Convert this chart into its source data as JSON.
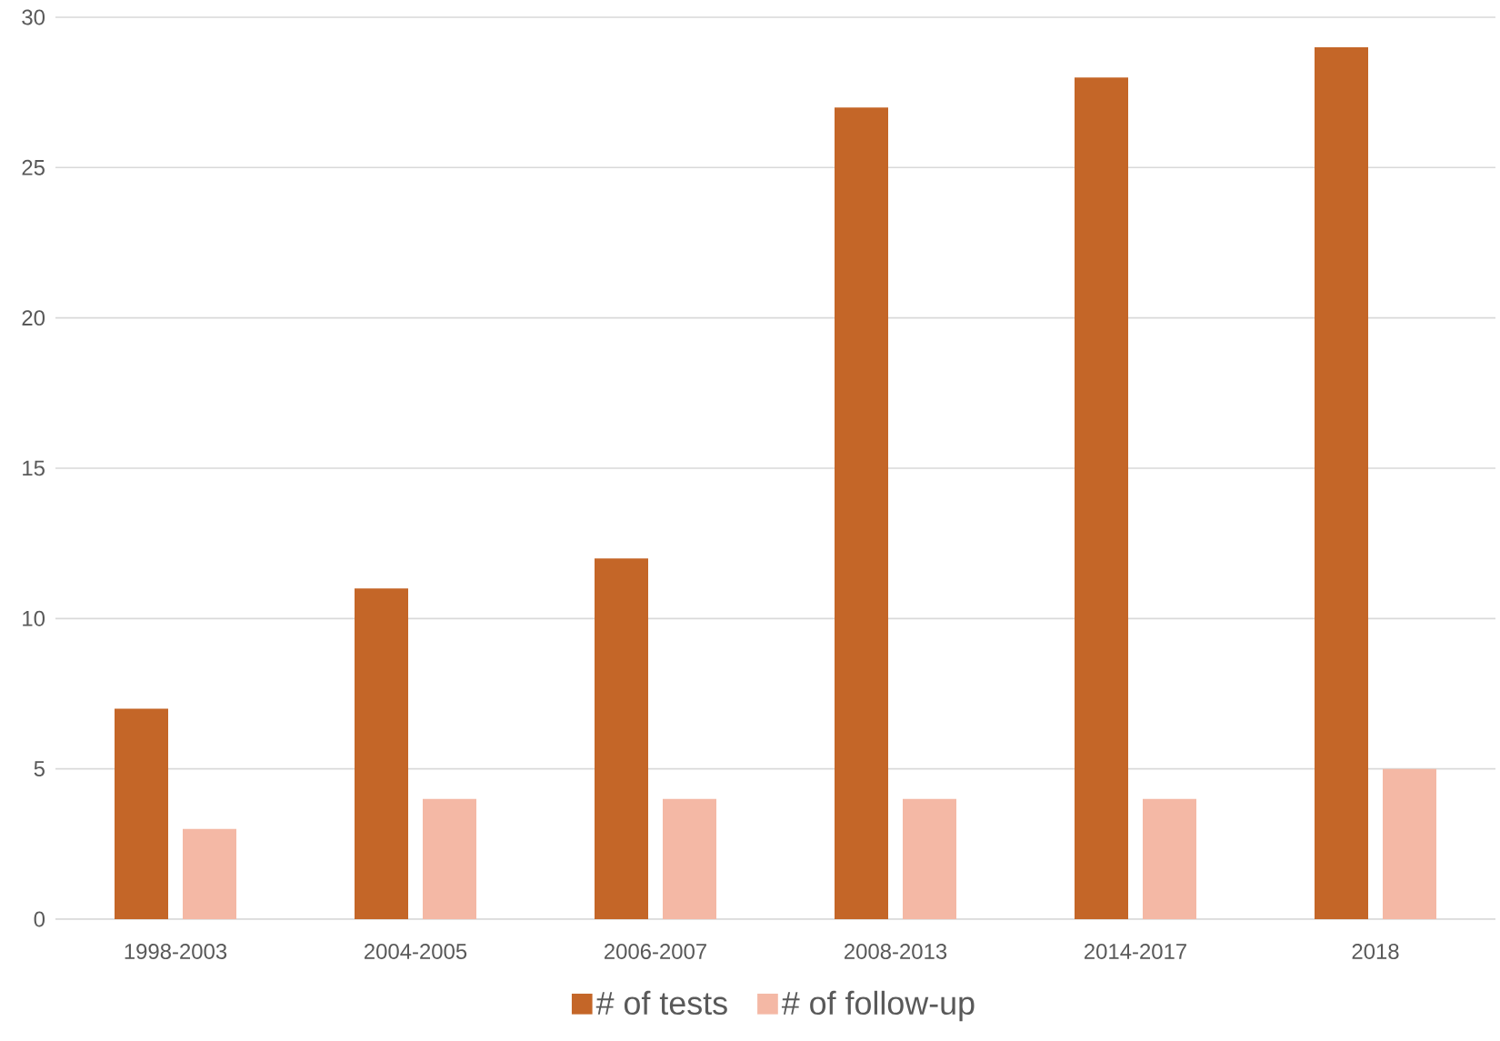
{
  "chart_data": {
    "type": "bar",
    "categories": [
      "1998-2003",
      "2004-2005",
      "2006-2007",
      "2008-2013",
      "2014-2017",
      "2018"
    ],
    "series": [
      {
        "name": "# of tests",
        "color": "#c46628",
        "values": [
          7,
          11,
          12,
          27,
          28,
          29
        ]
      },
      {
        "name": "# of follow-up",
        "color": "#f4b8a5",
        "values": [
          3,
          4,
          4,
          4,
          4,
          5
        ]
      }
    ],
    "ylim": [
      0,
      30
    ],
    "yticks": [
      0,
      5,
      10,
      15,
      20,
      25,
      30
    ],
    "grid": "y",
    "legend": "bottom"
  }
}
